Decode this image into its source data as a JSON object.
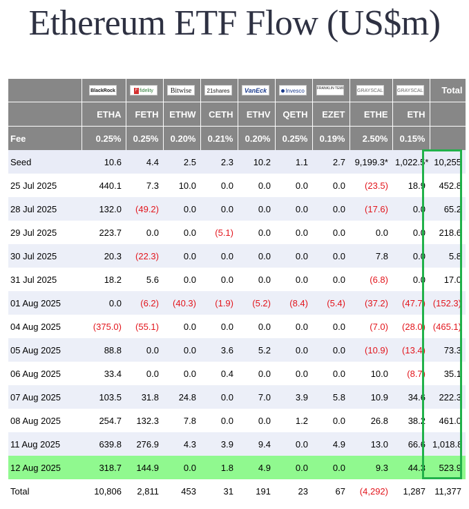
{
  "title": "Ethereum ETF Flow (US$m)",
  "chart_data": {
    "type": "table",
    "title": "Ethereum ETF Flow (US$m)",
    "issuers": [
      {
        "logo": "BlackRock",
        "ticker": "ETHA",
        "fee": "0.25%"
      },
      {
        "logo": "Fidelity",
        "ticker": "FETH",
        "fee": "0.25%"
      },
      {
        "logo": "Bitwise",
        "ticker": "ETHW",
        "fee": "0.20%"
      },
      {
        "logo": "21shares",
        "ticker": "CETH",
        "fee": "0.21%"
      },
      {
        "logo": "VanEck",
        "ticker": "ETHV",
        "fee": "0.20%"
      },
      {
        "logo": "Invesco",
        "ticker": "QETH",
        "fee": "0.25%"
      },
      {
        "logo": "FRANKLIN TEMPLETON",
        "ticker": "EZET",
        "fee": "0.19%"
      },
      {
        "logo": "GRAYSCALE",
        "ticker": "ETHE",
        "fee": "2.50%"
      },
      {
        "logo": "GRAYSCALE",
        "ticker": "ETH",
        "fee": "0.15%"
      }
    ],
    "total_header": "Total",
    "fee_label": "Fee",
    "rows": [
      {
        "label": "Seed",
        "cells": [
          "10.6",
          "4.4",
          "2.5",
          "2.3",
          "10.2",
          "1.1",
          "2.7",
          "9,199.3*",
          "1,022.5*"
        ],
        "total": "10,255"
      },
      {
        "label": "25 Jul 2025",
        "cells": [
          "440.1",
          "7.3",
          "10.0",
          "0.0",
          "0.0",
          "0.0",
          "0.0",
          "(23.5)",
          "18.9"
        ],
        "total": "452.8"
      },
      {
        "label": "28 Jul 2025",
        "cells": [
          "132.0",
          "(49.2)",
          "0.0",
          "0.0",
          "0.0",
          "0.0",
          "0.0",
          "(17.6)",
          "0.0"
        ],
        "total": "65.2"
      },
      {
        "label": "29 Jul 2025",
        "cells": [
          "223.7",
          "0.0",
          "0.0",
          "(5.1)",
          "0.0",
          "0.0",
          "0.0",
          "0.0",
          "0.0"
        ],
        "total": "218.6"
      },
      {
        "label": "30 Jul 2025",
        "cells": [
          "20.3",
          "(22.3)",
          "0.0",
          "0.0",
          "0.0",
          "0.0",
          "0.0",
          "7.8",
          "0.0"
        ],
        "total": "5.8"
      },
      {
        "label": "31 Jul 2025",
        "cells": [
          "18.2",
          "5.6",
          "0.0",
          "0.0",
          "0.0",
          "0.0",
          "0.0",
          "(6.8)",
          "0.0"
        ],
        "total": "17.0"
      },
      {
        "label": "01 Aug 2025",
        "cells": [
          "0.0",
          "(6.2)",
          "(40.3)",
          "(1.9)",
          "(5.2)",
          "(8.4)",
          "(5.4)",
          "(37.2)",
          "(47.7)"
        ],
        "total": "(152.3)"
      },
      {
        "label": "04 Aug 2025",
        "cells": [
          "(375.0)",
          "(55.1)",
          "0.0",
          "0.0",
          "0.0",
          "0.0",
          "0.0",
          "(7.0)",
          "(28.0)"
        ],
        "total": "(465.1)"
      },
      {
        "label": "05 Aug 2025",
        "cells": [
          "88.8",
          "0.0",
          "0.0",
          "3.6",
          "5.2",
          "0.0",
          "0.0",
          "(10.9)",
          "(13.4)"
        ],
        "total": "73.3"
      },
      {
        "label": "06 Aug 2025",
        "cells": [
          "33.4",
          "0.0",
          "0.0",
          "0.4",
          "0.0",
          "0.0",
          "0.0",
          "10.0",
          "(8.7)"
        ],
        "total": "35.1"
      },
      {
        "label": "07 Aug 2025",
        "cells": [
          "103.5",
          "31.8",
          "24.8",
          "0.0",
          "7.0",
          "3.9",
          "5.8",
          "10.9",
          "34.6"
        ],
        "total": "222.3"
      },
      {
        "label": "08 Aug 2025",
        "cells": [
          "254.7",
          "132.3",
          "7.8",
          "0.0",
          "0.0",
          "1.2",
          "0.0",
          "26.8",
          "38.2"
        ],
        "total": "461.0"
      },
      {
        "label": "11 Aug 2025",
        "cells": [
          "639.8",
          "276.9",
          "4.3",
          "3.9",
          "9.4",
          "0.0",
          "4.9",
          "13.0",
          "66.6"
        ],
        "total": "1,018.8"
      },
      {
        "label": "12 Aug 2025",
        "cells": [
          "318.7",
          "144.9",
          "0.0",
          "1.8",
          "4.9",
          "0.0",
          "0.0",
          "9.3",
          "44.3"
        ],
        "total": "523.9",
        "highlight": true
      }
    ],
    "total_row": {
      "label": "Total",
      "cells": [
        "10,806",
        "2,811",
        "453",
        "31",
        "191",
        "23",
        "67",
        "(4,292)",
        "1,287"
      ],
      "total": "11,377"
    }
  },
  "colors": {
    "header_bg": "#878787",
    "negative": "#e2141b",
    "highlight_row": "#90f98f",
    "highlight_box": "#21b14a",
    "stripe": "#eceff8"
  }
}
